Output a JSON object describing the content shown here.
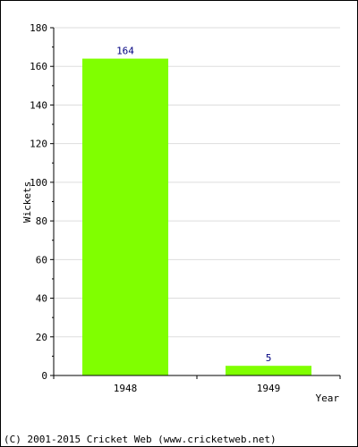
{
  "chart_data": {
    "type": "bar",
    "title": "",
    "xlabel": "Year",
    "ylabel": "Wickets",
    "categories": [
      "1948",
      "1949"
    ],
    "values": [
      164,
      5
    ],
    "data_labels": [
      "164",
      "5"
    ],
    "ylim": [
      0,
      180
    ],
    "yticks": [
      0,
      20,
      40,
      60,
      80,
      100,
      120,
      140,
      160,
      180
    ],
    "ytick_labels": [
      "0",
      "20",
      "40",
      "60",
      "80",
      "100",
      "120",
      "140",
      "160",
      "180"
    ],
    "grid": true,
    "colors": {
      "bar": "#80ff00",
      "grid": "#dddddd",
      "axis": "#000000",
      "data_label": "#000080"
    }
  },
  "footer": {
    "copyright": "(C) 2001-2015 Cricket Web (www.cricketweb.net)"
  }
}
